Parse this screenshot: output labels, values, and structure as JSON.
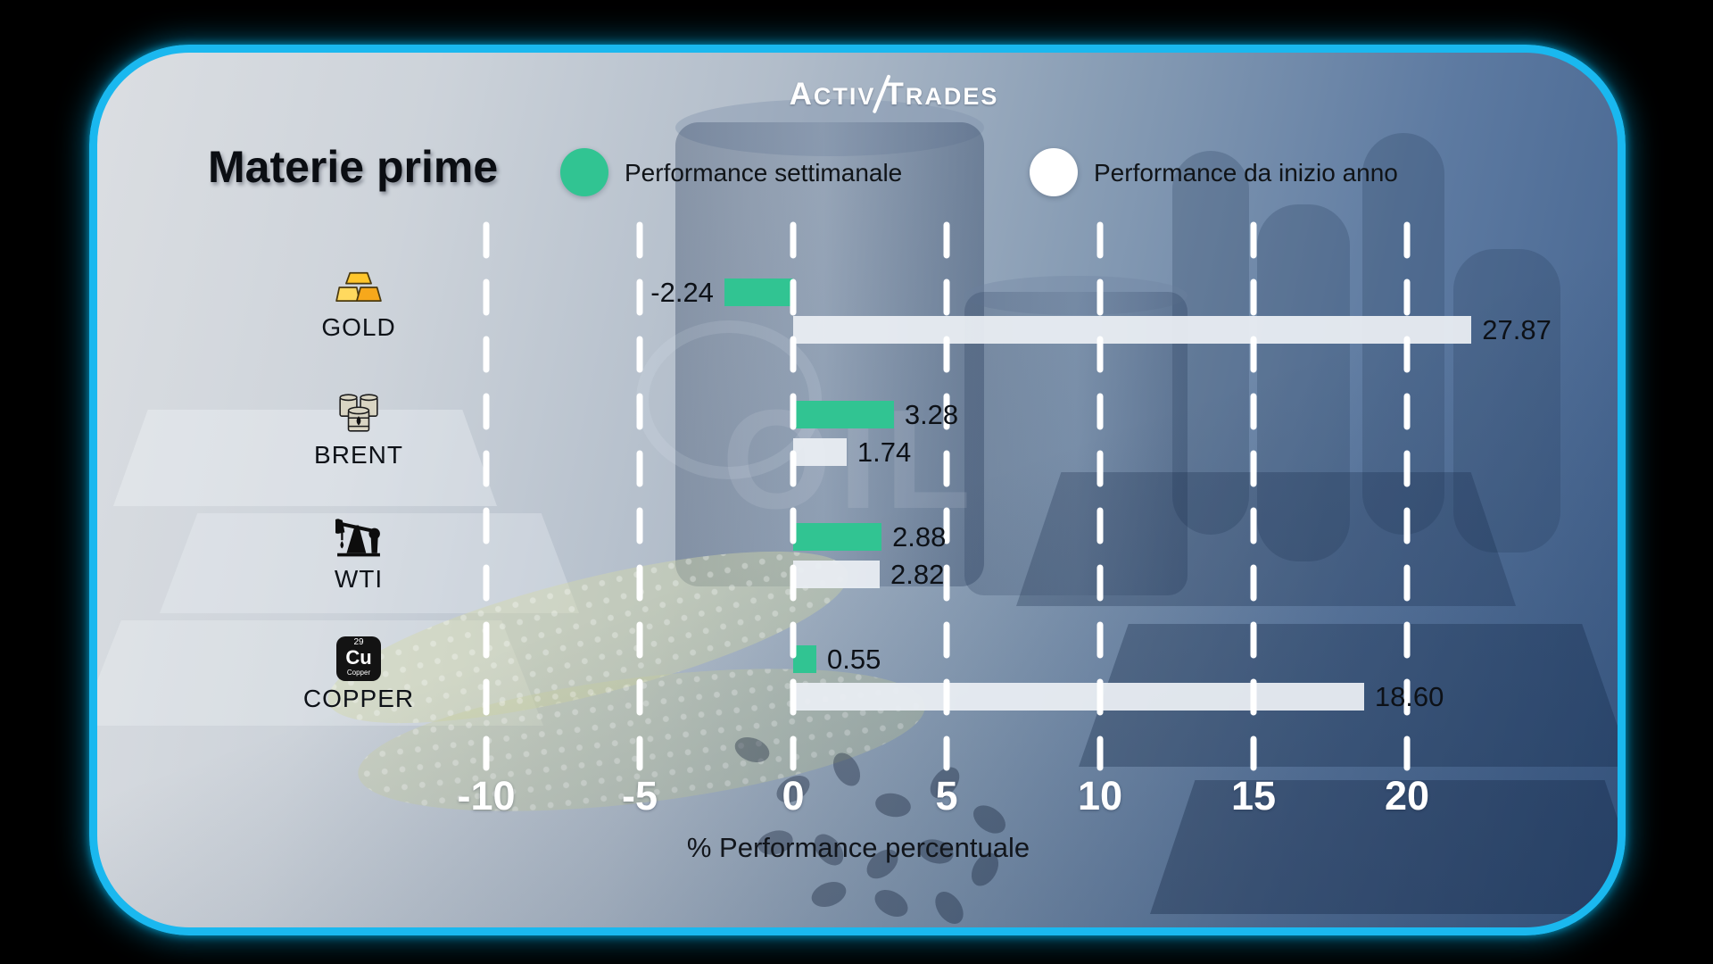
{
  "brand": {
    "word1_initial": "A",
    "word1_rest": "CTIV",
    "word2_initial": "T",
    "word2_rest": "RADES"
  },
  "header": {
    "title": "Materie prime"
  },
  "legend": {
    "weekly": {
      "label": "Performance settimanale",
      "color": "#31c492"
    },
    "ytd": {
      "label": "Performance da inizio anno",
      "color": "#ffffff"
    }
  },
  "watermark": "OIL",
  "chart_data": {
    "type": "bar",
    "orientation": "horizontal",
    "title": "Materie prime",
    "categories": [
      "GOLD",
      "BRENT",
      "WTI",
      "COPPER"
    ],
    "category_icons": [
      "gold-bars",
      "oil-barrels",
      "oil-pumpjack",
      "copper-element"
    ],
    "series": [
      {
        "name": "Performance settimanale",
        "color": "#31c492",
        "values": [
          -2.24,
          3.28,
          2.88,
          0.55
        ]
      },
      {
        "name": "Performance da inizio anno",
        "color": "#e9edf2",
        "values": [
          27.87,
          1.74,
          2.82,
          18.6
        ]
      }
    ],
    "xlabel": "% Performance percentuale",
    "x_ticks": [
      -10,
      -5,
      0,
      5,
      10,
      15,
      20
    ],
    "xlim": [
      -12.5,
      24.7
    ],
    "grid": "dashed-vertical-white",
    "legend_position": "top",
    "bar_display_clip": 22.1,
    "copper_icon": {
      "atomic_number": "29",
      "symbol": "Cu",
      "name": "Copper"
    }
  }
}
